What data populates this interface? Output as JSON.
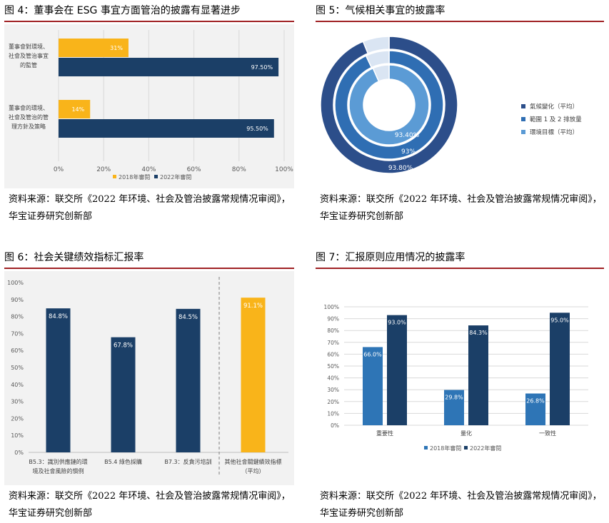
{
  "colors": {
    "title_rule": "#a02225",
    "navy": "#1b3f67",
    "gold": "#f9b41a",
    "blue_mid": "#2e75b6",
    "donut_outer": "#2c4e8a",
    "donut_mid": "#2f6eb3",
    "donut_inner": "#5b9bd5",
    "donut_remainder": "#dae5f3"
  },
  "fig4": {
    "title": "图 4：董事会在 ESG 事宜方面管治的披露有显著进步",
    "source_line1": "资料来源：联交所《2022 年环境、社会及管治披露常规情况审阅》，",
    "source_line2": "华宝证券研究创新部",
    "chart_data": {
      "type": "bar",
      "orientation": "horizontal",
      "categories": [
        [
          "董事會對環境、",
          "社會及管治事宜",
          "的監管"
        ],
        [
          "董事會的環境、",
          "社會及管治的管",
          "理方針及策略"
        ]
      ],
      "series": [
        {
          "name": "2018年審閱",
          "values": [
            31,
            14
          ],
          "labels": [
            "31%",
            "14%"
          ]
        },
        {
          "name": "2022年審閱",
          "values": [
            97.5,
            95.5
          ],
          "labels": [
            "97.50%",
            "95.50%"
          ]
        }
      ],
      "xlim": [
        0,
        100
      ],
      "xticks": [
        "0%",
        "20%",
        "40%",
        "60%",
        "80%",
        "100%"
      ],
      "legend": "bottom",
      "grid": true
    }
  },
  "fig5": {
    "title": "图 5：气候相关事宜的披露率",
    "source_line1": "资料来源：联交所《2022 年环境、社会及管治披露常规情况审阅》，",
    "source_line2": "华宝证券研究创新部",
    "chart_data": {
      "type": "pie",
      "variant": "concentric-donut",
      "rings": [
        {
          "name": "氣候變化（平均）",
          "value": 93.8,
          "label": "93.80%"
        },
        {
          "name": "範圍 1 及 2 排放量",
          "value": 93,
          "label": "93%"
        },
        {
          "name": "環境目標（平均）",
          "value": 93.4,
          "label": "93.40%"
        }
      ],
      "legend": "right"
    }
  },
  "fig6": {
    "title": "图 6：社会关键绩效指标汇报率",
    "source_line1": "资料来源：联交所《2022 年环境、社会及管治披露常规情况审阅》，",
    "source_line2": "华宝证券研究创新部",
    "chart_data": {
      "type": "bar",
      "categories": [
        [
          "B5.3：識別供應鏈的環",
          "境及社會風險的慣例"
        ],
        [
          "B5.4 綠色採購"
        ],
        [
          "B7.3：反貪污培訓"
        ],
        [
          "其他社會關鍵績效指標",
          "（平均）"
        ]
      ],
      "values": [
        84.8,
        67.8,
        84.5,
        91.1
      ],
      "labels": [
        "84.8%",
        "67.8%",
        "84.5%",
        "91.1%"
      ],
      "highlight_index": 3,
      "ylim": [
        0,
        100
      ],
      "yticks": [
        "0%",
        "10%",
        "20%",
        "30%",
        "40%",
        "50%",
        "60%",
        "70%",
        "80%",
        "90%",
        "100%"
      ],
      "grid": false
    }
  },
  "fig7": {
    "title": "图 7：汇报原则应用情况的披露率",
    "source_line1": "资料来源：联交所《2022 年环境、社会及管治披露常规情况审阅》，",
    "source_line2": "华宝证券研究创新部",
    "chart_data": {
      "type": "bar",
      "categories": [
        "重要性",
        "量化",
        "一致性"
      ],
      "series": [
        {
          "name": "2018年審閱",
          "values": [
            66.0,
            29.8,
            26.8
          ],
          "labels": [
            "66.0%",
            "29.8%",
            "26.8%"
          ]
        },
        {
          "name": "2022年審閱",
          "values": [
            93.0,
            84.3,
            95.0
          ],
          "labels": [
            "93.0%",
            "84.3%",
            "95.0%"
          ]
        }
      ],
      "ylim": [
        0,
        100
      ],
      "yticks": [
        "0%",
        "10%",
        "20%",
        "30%",
        "40%",
        "50%",
        "60%",
        "70%",
        "80%",
        "90%",
        "100%"
      ],
      "legend": "bottom",
      "grid": true
    }
  }
}
